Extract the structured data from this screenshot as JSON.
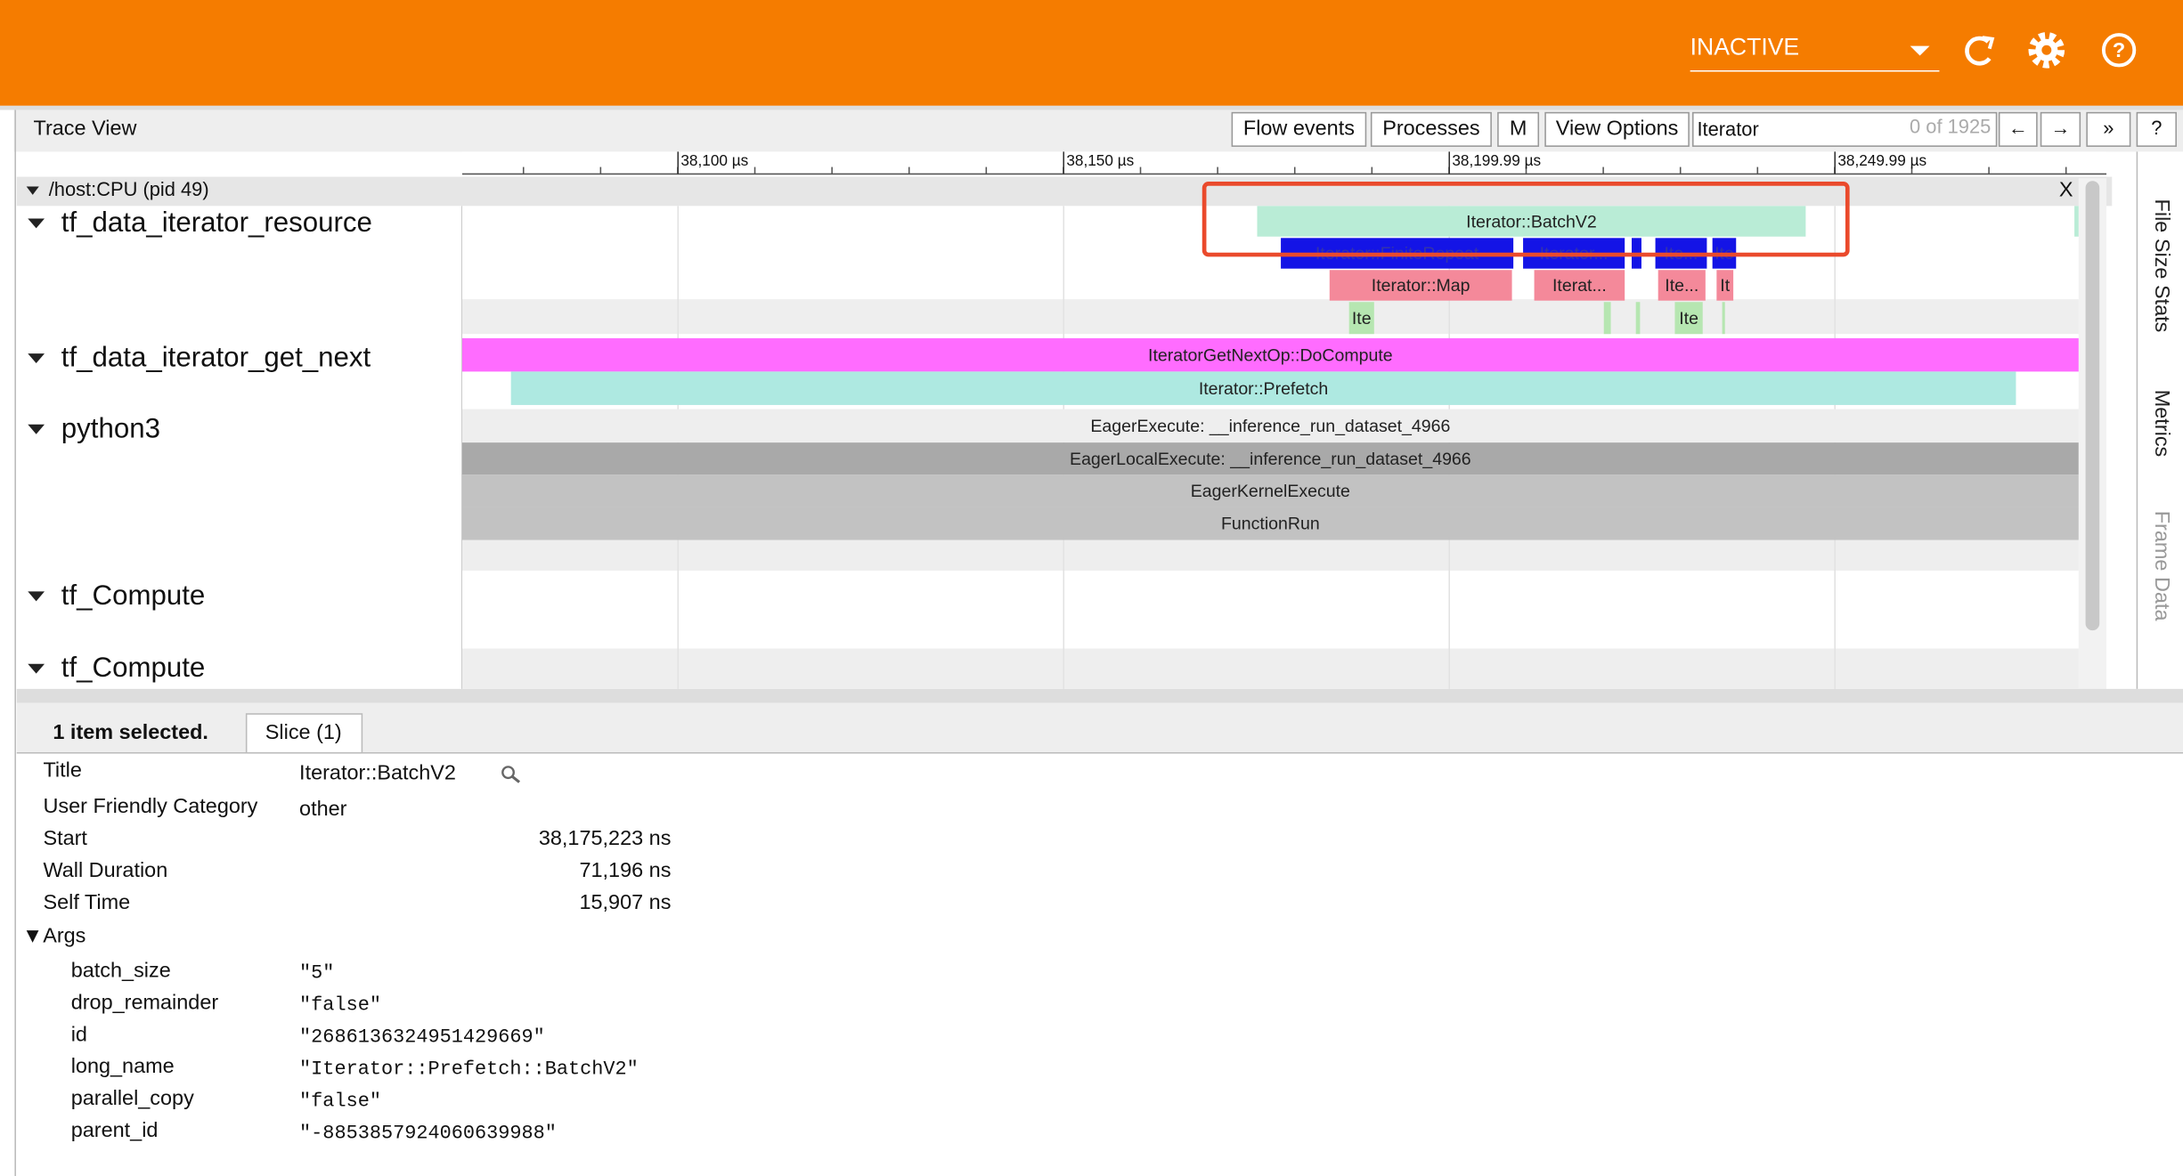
{
  "header": {
    "status": "INACTIVE"
  },
  "toolbar": {
    "title": "Trace View",
    "buttons": [
      "Flow events",
      "Processes",
      "M",
      "View Options"
    ],
    "search": "Iterator",
    "search_count": "0 of 1925",
    "nav": [
      "←",
      "→",
      "»",
      "?"
    ]
  },
  "ruler": {
    "ticks": [
      "38,100 µs",
      "38,150 µs",
      "38,199.99 µs",
      "38,249.99 µs"
    ]
  },
  "process": {
    "label": "/host:CPU (pid 49)",
    "close": "X"
  },
  "threads": [
    {
      "name": "tf_data_iterator_resource",
      "slices": [
        "Iterator::BatchV2",
        "Iterator::FiniteRepeat",
        "Iterator...",
        "Ite...",
        "Ite",
        "Iterator::Map",
        "Iterat...",
        "Ite...",
        "It",
        "Ite",
        "Ite"
      ]
    },
    {
      "name": "tf_data_iterator_get_next",
      "slices": [
        "IteratorGetNextOp::DoCompute",
        "Iterator::Prefetch"
      ]
    },
    {
      "name": "python3",
      "slices": [
        "EagerExecute: __inference_run_dataset_4966",
        "EagerLocalExecute: __inference_run_dataset_4966",
        "EagerKernelExecute",
        "FunctionRun"
      ]
    },
    {
      "name": "tf_Compute"
    },
    {
      "name": "tf_Compute"
    }
  ],
  "side_tabs": [
    "File Size Stats",
    "Metrics",
    "Frame Data"
  ],
  "details": {
    "summary": "1 item selected.",
    "tab": "Slice (1)",
    "rows": [
      {
        "label": "Title",
        "value": "Iterator::BatchV2"
      },
      {
        "label": "User Friendly Category",
        "value": "other"
      },
      {
        "label": "Start",
        "value": "38,175,223 ns"
      },
      {
        "label": "Wall Duration",
        "value": "71,196 ns"
      },
      {
        "label": "Self Time",
        "value": "15,907 ns"
      }
    ],
    "args_label": "▼Args",
    "args": [
      {
        "key": "batch_size",
        "value": "\"5\""
      },
      {
        "key": "drop_remainder",
        "value": "\"false\""
      },
      {
        "key": "id",
        "value": "\"2686136324951429669\""
      },
      {
        "key": "long_name",
        "value": "\"Iterator::Prefetch::BatchV2\""
      },
      {
        "key": "parallel_copy",
        "value": "\"false\""
      },
      {
        "key": "parent_id",
        "value": "\"-8853857924060639988\""
      }
    ]
  }
}
